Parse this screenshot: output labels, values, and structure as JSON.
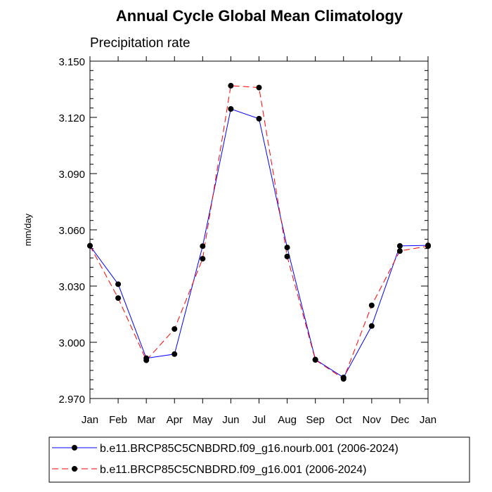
{
  "chart_data": {
    "type": "line",
    "title": "Annual Cycle Global Mean Climatology",
    "subtitle": "Precipitation rate",
    "xlabel": "",
    "ylabel": "mm/day",
    "ylim": [
      2.97,
      3.15
    ],
    "yticks": [
      "3.150",
      "3.120",
      "3.090",
      "3.060",
      "3.030",
      "3.000",
      "2.970"
    ],
    "ytick_values": [
      3.15,
      3.12,
      3.09,
      3.06,
      3.03,
      3.0,
      2.97
    ],
    "categories": [
      "Jan",
      "Feb",
      "Mar",
      "Apr",
      "May",
      "Jun",
      "Jul",
      "Aug",
      "Sep",
      "Oct",
      "Nov",
      "Dec",
      "Jan"
    ],
    "series": [
      {
        "name": "b.e11.BRCP85C5CNBDRD.f09_g16.nourb.001 (2006-2024)",
        "color": "#0000ff",
        "style": "solid",
        "values": [
          3.0515,
          3.031,
          2.9915,
          2.9937,
          3.0513,
          3.1245,
          3.1193,
          3.0506,
          2.9908,
          2.9812,
          3.0087,
          3.0514,
          3.0517
        ]
      },
      {
        "name": "b.e11.BRCP85C5CNBDRD.f09_g16.001 (2006-2024)",
        "color": "#ff0000",
        "style": "dashed",
        "values": [
          3.0515,
          3.0236,
          2.9904,
          3.0071,
          3.0446,
          3.1369,
          3.1359,
          3.0458,
          2.9906,
          2.9805,
          3.0197,
          3.0487,
          3.0513
        ]
      }
    ],
    "legend_position": "bottom"
  }
}
